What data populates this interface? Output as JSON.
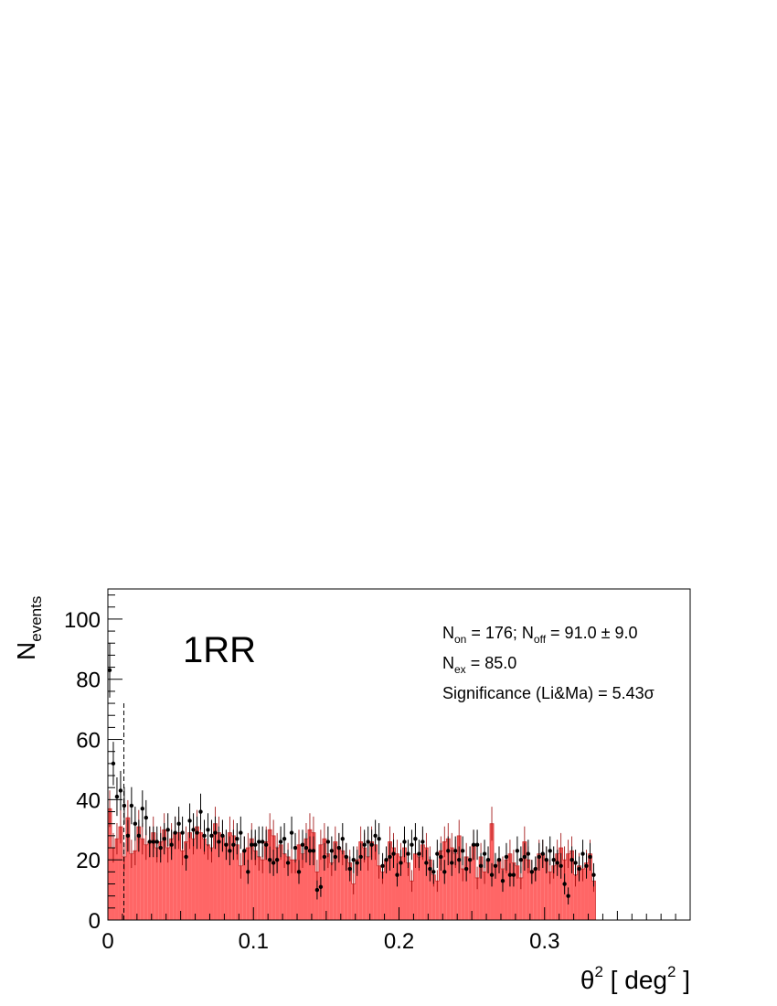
{
  "chart_data": {
    "type": "bar",
    "panel_label": "1RR",
    "xlabel": {
      "base": "θ",
      "sup1": "2",
      "mid": " [ deg",
      "sup2": "2",
      "end": " ]"
    },
    "ylabel": {
      "base": "N",
      "sub": "events"
    },
    "xlim": [
      0,
      0.4
    ],
    "ylim": [
      0,
      110
    ],
    "bin_width": 0.0025,
    "x_ticks": [
      0,
      0.1,
      0.2,
      0.3
    ],
    "x_tick_labels": [
      "0",
      "0.1",
      "0.2",
      "0.3"
    ],
    "y_ticks": [
      0,
      20,
      40,
      60,
      80,
      100
    ],
    "y_tick_labels": [
      "0",
      "20",
      "40",
      "60",
      "80",
      "100"
    ],
    "cut_line_x": 0.011,
    "cut_line_top": 72,
    "stats": {
      "line1": {
        "n1": "N",
        "n1_sub": "on",
        "t1": " = 176; ",
        "n2": "N",
        "n2_sub": "off",
        "t2": " = 91.0 ±  9.0"
      },
      "line2": {
        "n": "N",
        "n_sub": "ex",
        "t": " = 85.0"
      },
      "line3": {
        "t": "Significance (Li&Ma) = 5.43",
        "sym": "σ"
      }
    },
    "series": [
      {
        "name": "",
        "kind": "background-histogram",
        "color": "#ff6666",
        "values": [
          37,
          24,
          27,
          31,
          21,
          34,
          22,
          23,
          31,
          27,
          25,
          26,
          29,
          24,
          26,
          30,
          24,
          27,
          29,
          29,
          23,
          26,
          29,
          27,
          31,
          29,
          27,
          25,
          24,
          32,
          29,
          28,
          25,
          29,
          28,
          25,
          18,
          23,
          24,
          27,
          23,
          21,
          20,
          26,
          30,
          28,
          24,
          25,
          22,
          21,
          20,
          20,
          25,
          22,
          27,
          30,
          29,
          16,
          25,
          27,
          22,
          19,
          26,
          24,
          23,
          21,
          19,
          12,
          20,
          26,
          24,
          21,
          26,
          25,
          18,
          16,
          20,
          26,
          24,
          22,
          21,
          24,
          19,
          13,
          22,
          21,
          25,
          24,
          20,
          15,
          13,
          23,
          26,
          27,
          24,
          22,
          28,
          17,
          21,
          20,
          25,
          14,
          21,
          16,
          20,
          32,
          18,
          20,
          17,
          20,
          22,
          19,
          18,
          14,
          26,
          20,
          16,
          17,
          22,
          22,
          20,
          16,
          18,
          22,
          24,
          20,
          22,
          23,
          15,
          18,
          17,
          19,
          22,
          13
        ]
      },
      {
        "name": "",
        "kind": "on-data-points",
        "color": "#000000",
        "values": [
          83,
          52,
          41,
          43,
          38,
          28,
          38,
          32,
          28,
          37,
          34,
          26,
          26,
          26,
          24,
          27,
          30,
          25,
          29,
          32,
          29,
          21,
          33,
          30,
          29,
          36,
          28,
          30,
          28,
          29,
          26,
          28,
          25,
          23,
          25,
          27,
          29,
          23,
          16,
          25,
          25,
          26,
          26,
          25,
          20,
          19,
          20,
          26,
          27,
          19,
          29,
          24,
          16,
          25,
          24,
          23,
          23,
          10,
          11,
          21,
          26,
          23,
          21,
          24,
          27,
          21,
          17,
          20,
          19,
          21,
          25,
          26,
          25,
          28,
          27,
          18,
          20,
          21,
          22,
          15,
          19,
          26,
          22,
          25,
          27,
          22,
          26,
          19,
          17,
          16,
          22,
          21,
          16,
          23,
          19,
          23,
          20,
          23,
          17,
          20,
          25,
          25,
          18,
          22,
          20,
          15,
          18,
          20,
          13,
          21,
          15,
          15,
          23,
          20,
          21,
          22,
          16,
          17,
          21,
          22,
          20,
          23,
          20,
          19,
          18,
          12,
          8,
          20,
          19,
          17,
          22,
          18,
          21,
          15
        ]
      }
    ]
  }
}
